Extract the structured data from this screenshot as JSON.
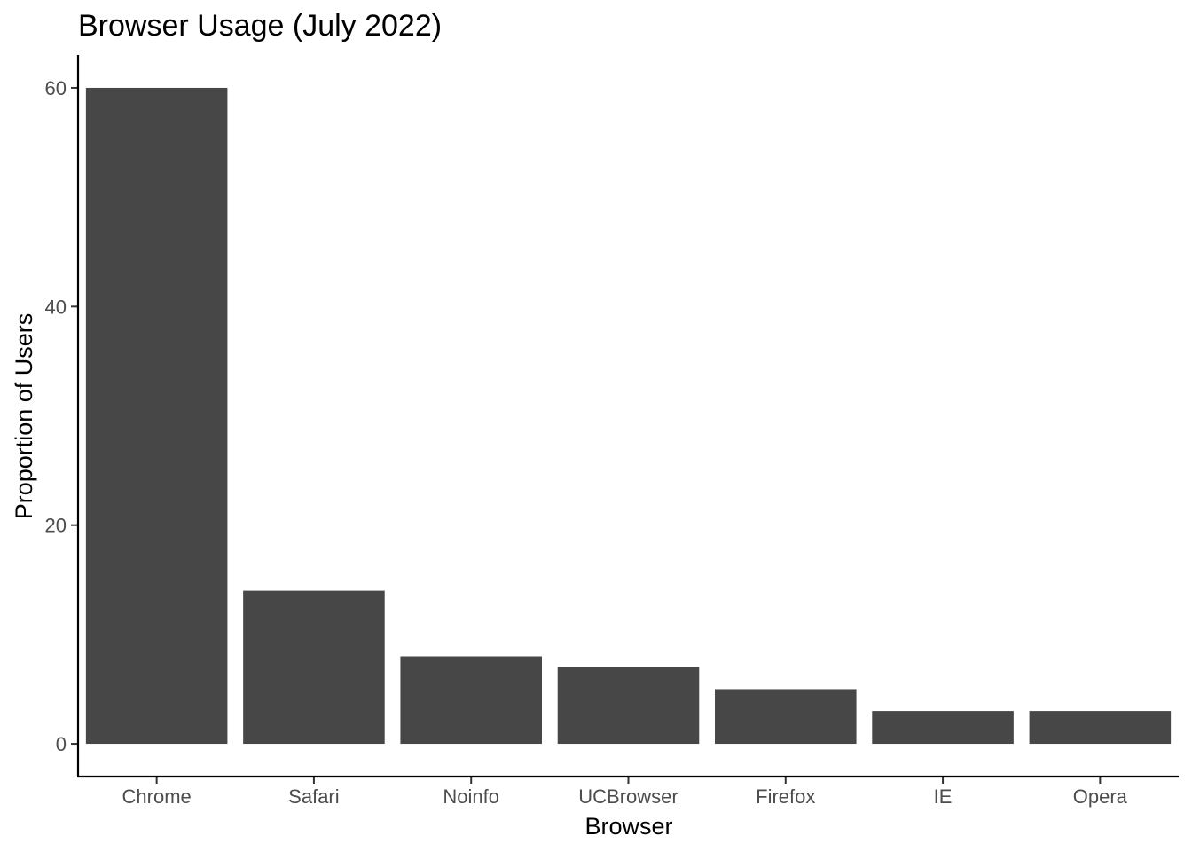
{
  "chart_data": {
    "type": "bar",
    "title": "Browser Usage (July 2022)",
    "xlabel": "Browser",
    "ylabel": "Proportion of Users",
    "categories": [
      "Chrome",
      "Safari",
      "Noinfo",
      "UCBrowser",
      "Firefox",
      "IE",
      "Opera"
    ],
    "values": [
      60,
      14,
      8,
      7,
      5,
      3,
      3
    ],
    "ylim": [
      -3,
      63
    ],
    "yticks": [
      0,
      20,
      40,
      60
    ],
    "bar_color": "#474747",
    "grid": false,
    "legend": "none"
  }
}
